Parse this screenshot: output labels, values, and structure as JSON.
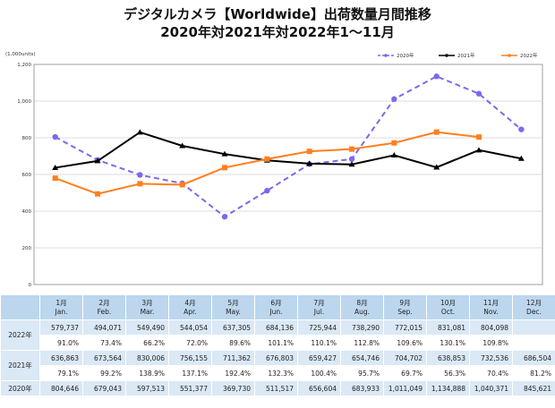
{
  "title_line1": "デジタルカメラ【Worldwide】出荷数量月間推移",
  "title_line2": "2020年対2021年対2022年1〜11月",
  "chart_data": {
    "type": "line",
    "unit_label": "(1,000units)",
    "ylim": [
      0,
      1200
    ],
    "yticks": [
      "0",
      "200",
      "400",
      "600",
      "800",
      "1,000",
      "1,200"
    ],
    "grid": true,
    "legend_position": "top-right",
    "categories": [
      "Jan.",
      "Feb.",
      "Mar.",
      "Apr.",
      "May.",
      "Jun.",
      "Jul.",
      "Aug.",
      "Sep.",
      "Oct.",
      "Nov.",
      "Dec."
    ],
    "series": [
      {
        "name": "2020年",
        "color": "#7b68ee",
        "dashed": true,
        "values": [
          804.646,
          679.043,
          597.513,
          551.377,
          369.73,
          511.517,
          656.604,
          683.933,
          1011.049,
          1134.888,
          1040.371,
          845.621
        ]
      },
      {
        "name": "2021年",
        "color": "#000000",
        "dashed": false,
        "values": [
          636.863,
          673.564,
          830.006,
          756.155,
          711.362,
          676.803,
          659.427,
          654.746,
          704.702,
          638.853,
          732.536,
          686.504
        ]
      },
      {
        "name": "2022年",
        "color": "#ff7f1e",
        "dashed": false,
        "values": [
          579.737,
          494.071,
          549.49,
          544.054,
          637.305,
          684.136,
          725.944,
          738.29,
          772.015,
          831.081,
          804.098,
          null
        ]
      }
    ]
  },
  "table": {
    "months": [
      {
        "num": "1月",
        "en": "Jan."
      },
      {
        "num": "2月",
        "en": "Feb."
      },
      {
        "num": "3月",
        "en": "Mar."
      },
      {
        "num": "4月",
        "en": "Apr."
      },
      {
        "num": "5月",
        "en": "May."
      },
      {
        "num": "6月",
        "en": "Jun."
      },
      {
        "num": "7月",
        "en": "Jul."
      },
      {
        "num": "8月",
        "en": "Aug."
      },
      {
        "num": "9月",
        "en": "Sep."
      },
      {
        "num": "10月",
        "en": "Oct."
      },
      {
        "num": "11月",
        "en": "Nov."
      },
      {
        "num": "12月",
        "en": "Dec."
      }
    ],
    "rows": [
      {
        "label": "2022年",
        "values": [
          "579,737",
          "494,071",
          "549,490",
          "544,054",
          "637,305",
          "684,136",
          "725,944",
          "738,290",
          "772,015",
          "831,081",
          "804,098",
          ""
        ],
        "ratios": [
          "91.0%",
          "73.4%",
          "66.2%",
          "72.0%",
          "89.6%",
          "101.1%",
          "110.1%",
          "112.8%",
          "109.6%",
          "130.1%",
          "109.8%",
          ""
        ]
      },
      {
        "label": "2021年",
        "values": [
          "636,863",
          "673,564",
          "830,006",
          "756,155",
          "711,362",
          "676,803",
          "659,427",
          "654,746",
          "704,702",
          "638,853",
          "732,536",
          "686,504"
        ],
        "ratios": [
          "79.1%",
          "99.2%",
          "138.9%",
          "137.1%",
          "192.4%",
          "132.3%",
          "100.4%",
          "95.7%",
          "69.7%",
          "56.3%",
          "70.4%",
          "81.2%"
        ]
      },
      {
        "label": "2020年",
        "values": [
          "804,646",
          "679,043",
          "597,513",
          "551,377",
          "369,730",
          "511,517",
          "656,604",
          "683,933",
          "1,011,049",
          "1,134,888",
          "1,040,371",
          "845,621"
        ]
      }
    ]
  }
}
